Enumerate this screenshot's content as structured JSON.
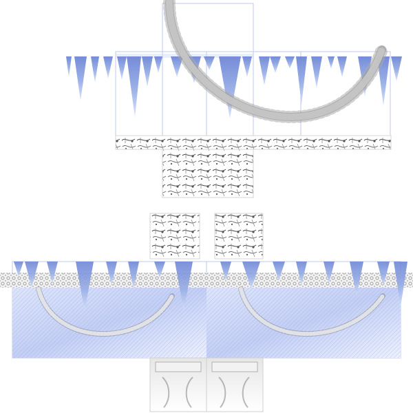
{
  "template": {
    "colors": {
      "background": "#ffffff",
      "guide_line": "#b9c2ee",
      "icicle_light": "#c9d6f5",
      "icicle_mid": "#97aee6",
      "icicle_dark": "#6f86d6",
      "chain_light": "#e7e7e7",
      "chain_mid": "#a9a9a9",
      "chain_dark": "#5b5b5b",
      "denim_light": "#eef2ff",
      "denim_mid": "#c8d3f5",
      "denim_dark": "#7f93dd",
      "texture_ink": "#4b4b4b",
      "lace_light": "#d9d9d9",
      "lace_dark": "#8c8c8c"
    }
  }
}
